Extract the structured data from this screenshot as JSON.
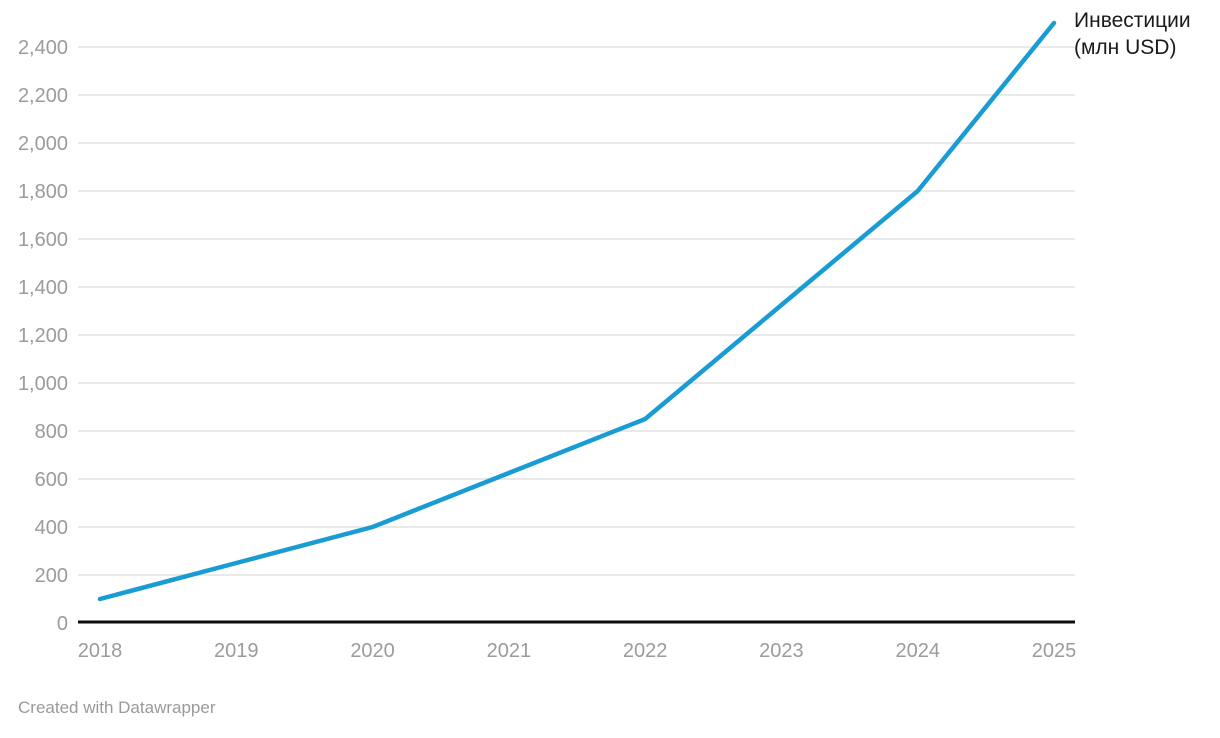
{
  "chart_data": {
    "type": "line",
    "title": "",
    "x": [
      2018,
      2019,
      2020,
      2021,
      2022,
      2023,
      2024,
      2025
    ],
    "series": [
      {
        "name": "Инвестиции (млн USD)",
        "values": [
          100,
          250,
          400,
          625,
          850,
          1325,
          1800,
          2500
        ]
      }
    ],
    "series_label_lines": [
      "Инвестиции",
      "(млн USD)"
    ],
    "xlabel": "",
    "ylabel": "",
    "ylim": [
      0,
      2400
    ],
    "y_ticks": [
      0,
      200,
      400,
      600,
      800,
      1000,
      1200,
      1400,
      1600,
      1800,
      2000,
      2200,
      2400
    ],
    "y_tick_labels": [
      "0",
      "200",
      "400",
      "600",
      "800",
      "1,000",
      "1,200",
      "1,400",
      "1,600",
      "1,800",
      "2,000",
      "2,200",
      "2,400"
    ],
    "x_tick_labels": [
      "2018",
      "2019",
      "2020",
      "2021",
      "2022",
      "2023",
      "2024",
      "2025"
    ],
    "grid": "horizontal",
    "legend_position": "right-of-line-end",
    "colors": {
      "line": "#189cd3",
      "grid": "#e9e9e9",
      "axis_line": "#0d0d0d",
      "tick_text": "#9b9b9b",
      "label_text": "#1a1a1a",
      "footer_text": "#9a9a9a"
    }
  },
  "footer": {
    "attribution": "Created with Datawrapper"
  }
}
